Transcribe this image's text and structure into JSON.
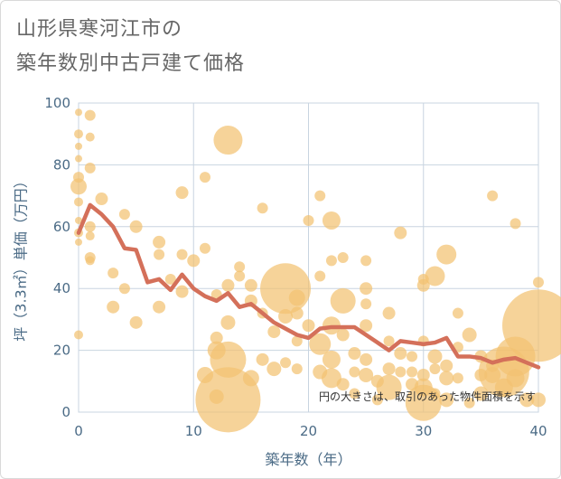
{
  "title_line1": "山形県寒河江市の",
  "title_line2": "築年数別中古戸建て価格",
  "chart_data": {
    "type": "scatter",
    "xlabel": "築年数（年）",
    "ylabel": "坪（3.3㎡）単価（万円）",
    "xlim": [
      0,
      40
    ],
    "ylim": [
      0,
      100
    ],
    "x_ticks": [
      "0",
      "10",
      "20",
      "30",
      "40"
    ],
    "y_ticks": [
      "0",
      "20",
      "40",
      "60",
      "80",
      "100"
    ],
    "annotation": "円の大きさは、取引のあった物件面積を示す",
    "grid": true,
    "colors": {
      "bubble": "#f3c272",
      "line": "#d4705a",
      "grid": "#c8d4e0"
    },
    "bubbles": [
      {
        "x": 0,
        "y": 97,
        "s": 4
      },
      {
        "x": 0,
        "y": 90,
        "s": 5
      },
      {
        "x": 0,
        "y": 82,
        "s": 4
      },
      {
        "x": 0,
        "y": 76,
        "s": 6
      },
      {
        "x": 0,
        "y": 73,
        "s": 9
      },
      {
        "x": 0,
        "y": 68,
        "s": 5
      },
      {
        "x": 0,
        "y": 62,
        "s": 4
      },
      {
        "x": 0,
        "y": 58,
        "s": 5
      },
      {
        "x": 0,
        "y": 55,
        "s": 4
      },
      {
        "x": 0,
        "y": 25,
        "s": 5
      },
      {
        "x": 0,
        "y": 86,
        "s": 4
      },
      {
        "x": 1,
        "y": 96,
        "s": 6
      },
      {
        "x": 1,
        "y": 89,
        "s": 5
      },
      {
        "x": 1,
        "y": 79,
        "s": 6
      },
      {
        "x": 1,
        "y": 60,
        "s": 6
      },
      {
        "x": 1,
        "y": 57,
        "s": 5
      },
      {
        "x": 1,
        "y": 50,
        "s": 6
      },
      {
        "x": 1,
        "y": 49,
        "s": 5
      },
      {
        "x": 2,
        "y": 69,
        "s": 7
      },
      {
        "x": 3,
        "y": 45,
        "s": 6
      },
      {
        "x": 3,
        "y": 34,
        "s": 7
      },
      {
        "x": 4,
        "y": 64,
        "s": 6
      },
      {
        "x": 4,
        "y": 40,
        "s": 6
      },
      {
        "x": 5,
        "y": 60,
        "s": 7
      },
      {
        "x": 5,
        "y": 29,
        "s": 7
      },
      {
        "x": 7,
        "y": 55,
        "s": 7
      },
      {
        "x": 7,
        "y": 51,
        "s": 6
      },
      {
        "x": 7,
        "y": 34,
        "s": 7
      },
      {
        "x": 8,
        "y": 43,
        "s": 6
      },
      {
        "x": 9,
        "y": 71,
        "s": 7
      },
      {
        "x": 9,
        "y": 51,
        "s": 6
      },
      {
        "x": 9,
        "y": 39,
        "s": 7
      },
      {
        "x": 10,
        "y": 49,
        "s": 7
      },
      {
        "x": 11,
        "y": 53,
        "s": 6
      },
      {
        "x": 11,
        "y": 76,
        "s": 6
      },
      {
        "x": 11,
        "y": 12,
        "s": 9
      },
      {
        "x": 12,
        "y": 20,
        "s": 10
      },
      {
        "x": 12,
        "y": 24,
        "s": 7
      },
      {
        "x": 12,
        "y": 38,
        "s": 6
      },
      {
        "x": 12,
        "y": 5,
        "s": 8
      },
      {
        "x": 13,
        "y": 88,
        "s": 16
      },
      {
        "x": 13,
        "y": 41,
        "s": 7
      },
      {
        "x": 13,
        "y": 29,
        "s": 8
      },
      {
        "x": 13,
        "y": 17,
        "s": 20
      },
      {
        "x": 13,
        "y": 4,
        "s": 36
      },
      {
        "x": 14,
        "y": 44,
        "s": 6
      },
      {
        "x": 14,
        "y": 47,
        "s": 6
      },
      {
        "x": 15,
        "y": 41,
        "s": 7
      },
      {
        "x": 15,
        "y": 36,
        "s": 7
      },
      {
        "x": 15,
        "y": 11,
        "s": 9
      },
      {
        "x": 16,
        "y": 66,
        "s": 6
      },
      {
        "x": 16,
        "y": 32,
        "s": 6
      },
      {
        "x": 16,
        "y": 17,
        "s": 7
      },
      {
        "x": 17,
        "y": 14,
        "s": 8
      },
      {
        "x": 17,
        "y": 26,
        "s": 7
      },
      {
        "x": 18,
        "y": 40,
        "s": 28
      },
      {
        "x": 18,
        "y": 31,
        "s": 8
      },
      {
        "x": 18,
        "y": 16,
        "s": 6
      },
      {
        "x": 19,
        "y": 37,
        "s": 9
      },
      {
        "x": 19,
        "y": 32,
        "s": 7
      },
      {
        "x": 19,
        "y": 23,
        "s": 6
      },
      {
        "x": 19,
        "y": 14,
        "s": 6
      },
      {
        "x": 20,
        "y": 62,
        "s": 6
      },
      {
        "x": 20,
        "y": 28,
        "s": 7
      },
      {
        "x": 21,
        "y": 70,
        "s": 6
      },
      {
        "x": 21,
        "y": 44,
        "s": 6
      },
      {
        "x": 21,
        "y": 22,
        "s": 12
      },
      {
        "x": 21,
        "y": 13,
        "s": 8
      },
      {
        "x": 22,
        "y": 62,
        "s": 10
      },
      {
        "x": 22,
        "y": 49,
        "s": 6
      },
      {
        "x": 22,
        "y": 28,
        "s": 10
      },
      {
        "x": 22,
        "y": 17,
        "s": 10
      },
      {
        "x": 22,
        "y": 11,
        "s": 11
      },
      {
        "x": 23,
        "y": 50,
        "s": 6
      },
      {
        "x": 23,
        "y": 36,
        "s": 14
      },
      {
        "x": 23,
        "y": 25,
        "s": 7
      },
      {
        "x": 23,
        "y": 9,
        "s": 7
      },
      {
        "x": 24,
        "y": 19,
        "s": 7
      },
      {
        "x": 24,
        "y": 13,
        "s": 6
      },
      {
        "x": 24,
        "y": 6,
        "s": 6
      },
      {
        "x": 25,
        "y": 49,
        "s": 6
      },
      {
        "x": 25,
        "y": 40,
        "s": 7
      },
      {
        "x": 25,
        "y": 35,
        "s": 6
      },
      {
        "x": 25,
        "y": 28,
        "s": 7
      },
      {
        "x": 25,
        "y": 17,
        "s": 7
      },
      {
        "x": 25,
        "y": 12,
        "s": 8
      },
      {
        "x": 26,
        "y": 10,
        "s": 7
      },
      {
        "x": 26,
        "y": 4,
        "s": 6
      },
      {
        "x": 27,
        "y": 32,
        "s": 7
      },
      {
        "x": 27,
        "y": 23,
        "s": 6
      },
      {
        "x": 27,
        "y": 14,
        "s": 7
      },
      {
        "x": 27,
        "y": 8,
        "s": 14
      },
      {
        "x": 28,
        "y": 58,
        "s": 7
      },
      {
        "x": 28,
        "y": 19,
        "s": 7
      },
      {
        "x": 28,
        "y": 13,
        "s": 6
      },
      {
        "x": 29,
        "y": 18,
        "s": 6
      },
      {
        "x": 29,
        "y": 13,
        "s": 6
      },
      {
        "x": 29,
        "y": 9,
        "s": 7
      },
      {
        "x": 30,
        "y": 41,
        "s": 7
      },
      {
        "x": 30,
        "y": 43,
        "s": 6
      },
      {
        "x": 30,
        "y": 23,
        "s": 6
      },
      {
        "x": 30,
        "y": 12,
        "s": 7
      },
      {
        "x": 30,
        "y": 8,
        "s": 10
      },
      {
        "x": 30,
        "y": 3,
        "s": 20
      },
      {
        "x": 31,
        "y": 44,
        "s": 11
      },
      {
        "x": 31,
        "y": 18,
        "s": 8
      },
      {
        "x": 31,
        "y": 14,
        "s": 6
      },
      {
        "x": 31,
        "y": 6,
        "s": 6
      },
      {
        "x": 32,
        "y": 51,
        "s": 11
      },
      {
        "x": 32,
        "y": 15,
        "s": 7
      },
      {
        "x": 32,
        "y": 11,
        "s": 8
      },
      {
        "x": 32,
        "y": 4,
        "s": 8
      },
      {
        "x": 33,
        "y": 32,
        "s": 6
      },
      {
        "x": 33,
        "y": 21,
        "s": 6
      },
      {
        "x": 33,
        "y": 11,
        "s": 6
      },
      {
        "x": 34,
        "y": 25,
        "s": 8
      },
      {
        "x": 34,
        "y": 3,
        "s": 6
      },
      {
        "x": 35,
        "y": 18,
        "s": 7
      },
      {
        "x": 35,
        "y": 12,
        "s": 7
      },
      {
        "x": 35,
        "y": 6,
        "s": 8
      },
      {
        "x": 36,
        "y": 70,
        "s": 6
      },
      {
        "x": 36,
        "y": 15,
        "s": 7
      },
      {
        "x": 36,
        "y": 12,
        "s": 9
      },
      {
        "x": 37,
        "y": 13,
        "s": 28
      },
      {
        "x": 37,
        "y": 8,
        "s": 10
      },
      {
        "x": 38,
        "y": 61,
        "s": 6
      },
      {
        "x": 38,
        "y": 18,
        "s": 22
      },
      {
        "x": 38,
        "y": 11,
        "s": 10
      },
      {
        "x": 39,
        "y": 4,
        "s": 8
      },
      {
        "x": 40,
        "y": 28,
        "s": 40
      },
      {
        "x": 40,
        "y": 42,
        "s": 6
      },
      {
        "x": 40,
        "y": 4,
        "s": 8
      }
    ],
    "series": [
      {
        "x": [
          0,
          1,
          2,
          3,
          4,
          5,
          6,
          7,
          8,
          9,
          10,
          11,
          12,
          13,
          14,
          15,
          16,
          17,
          18,
          19,
          20,
          21,
          22,
          23,
          24,
          25,
          26,
          27,
          28,
          29,
          30,
          31,
          32,
          33,
          34,
          35,
          36,
          37,
          38,
          39,
          40
        ],
        "y": [
          58,
          67,
          64,
          60,
          53,
          52.5,
          42,
          43,
          39.5,
          44.5,
          40,
          37.5,
          36,
          38.5,
          34,
          35,
          32,
          29,
          27,
          25,
          24,
          27,
          27.5,
          27.5,
          27.5,
          25,
          22.5,
          20,
          23,
          22.5,
          22,
          22.5,
          24,
          18,
          18,
          17.5,
          16,
          17,
          17.5,
          16,
          14.5
        ]
      }
    ]
  }
}
